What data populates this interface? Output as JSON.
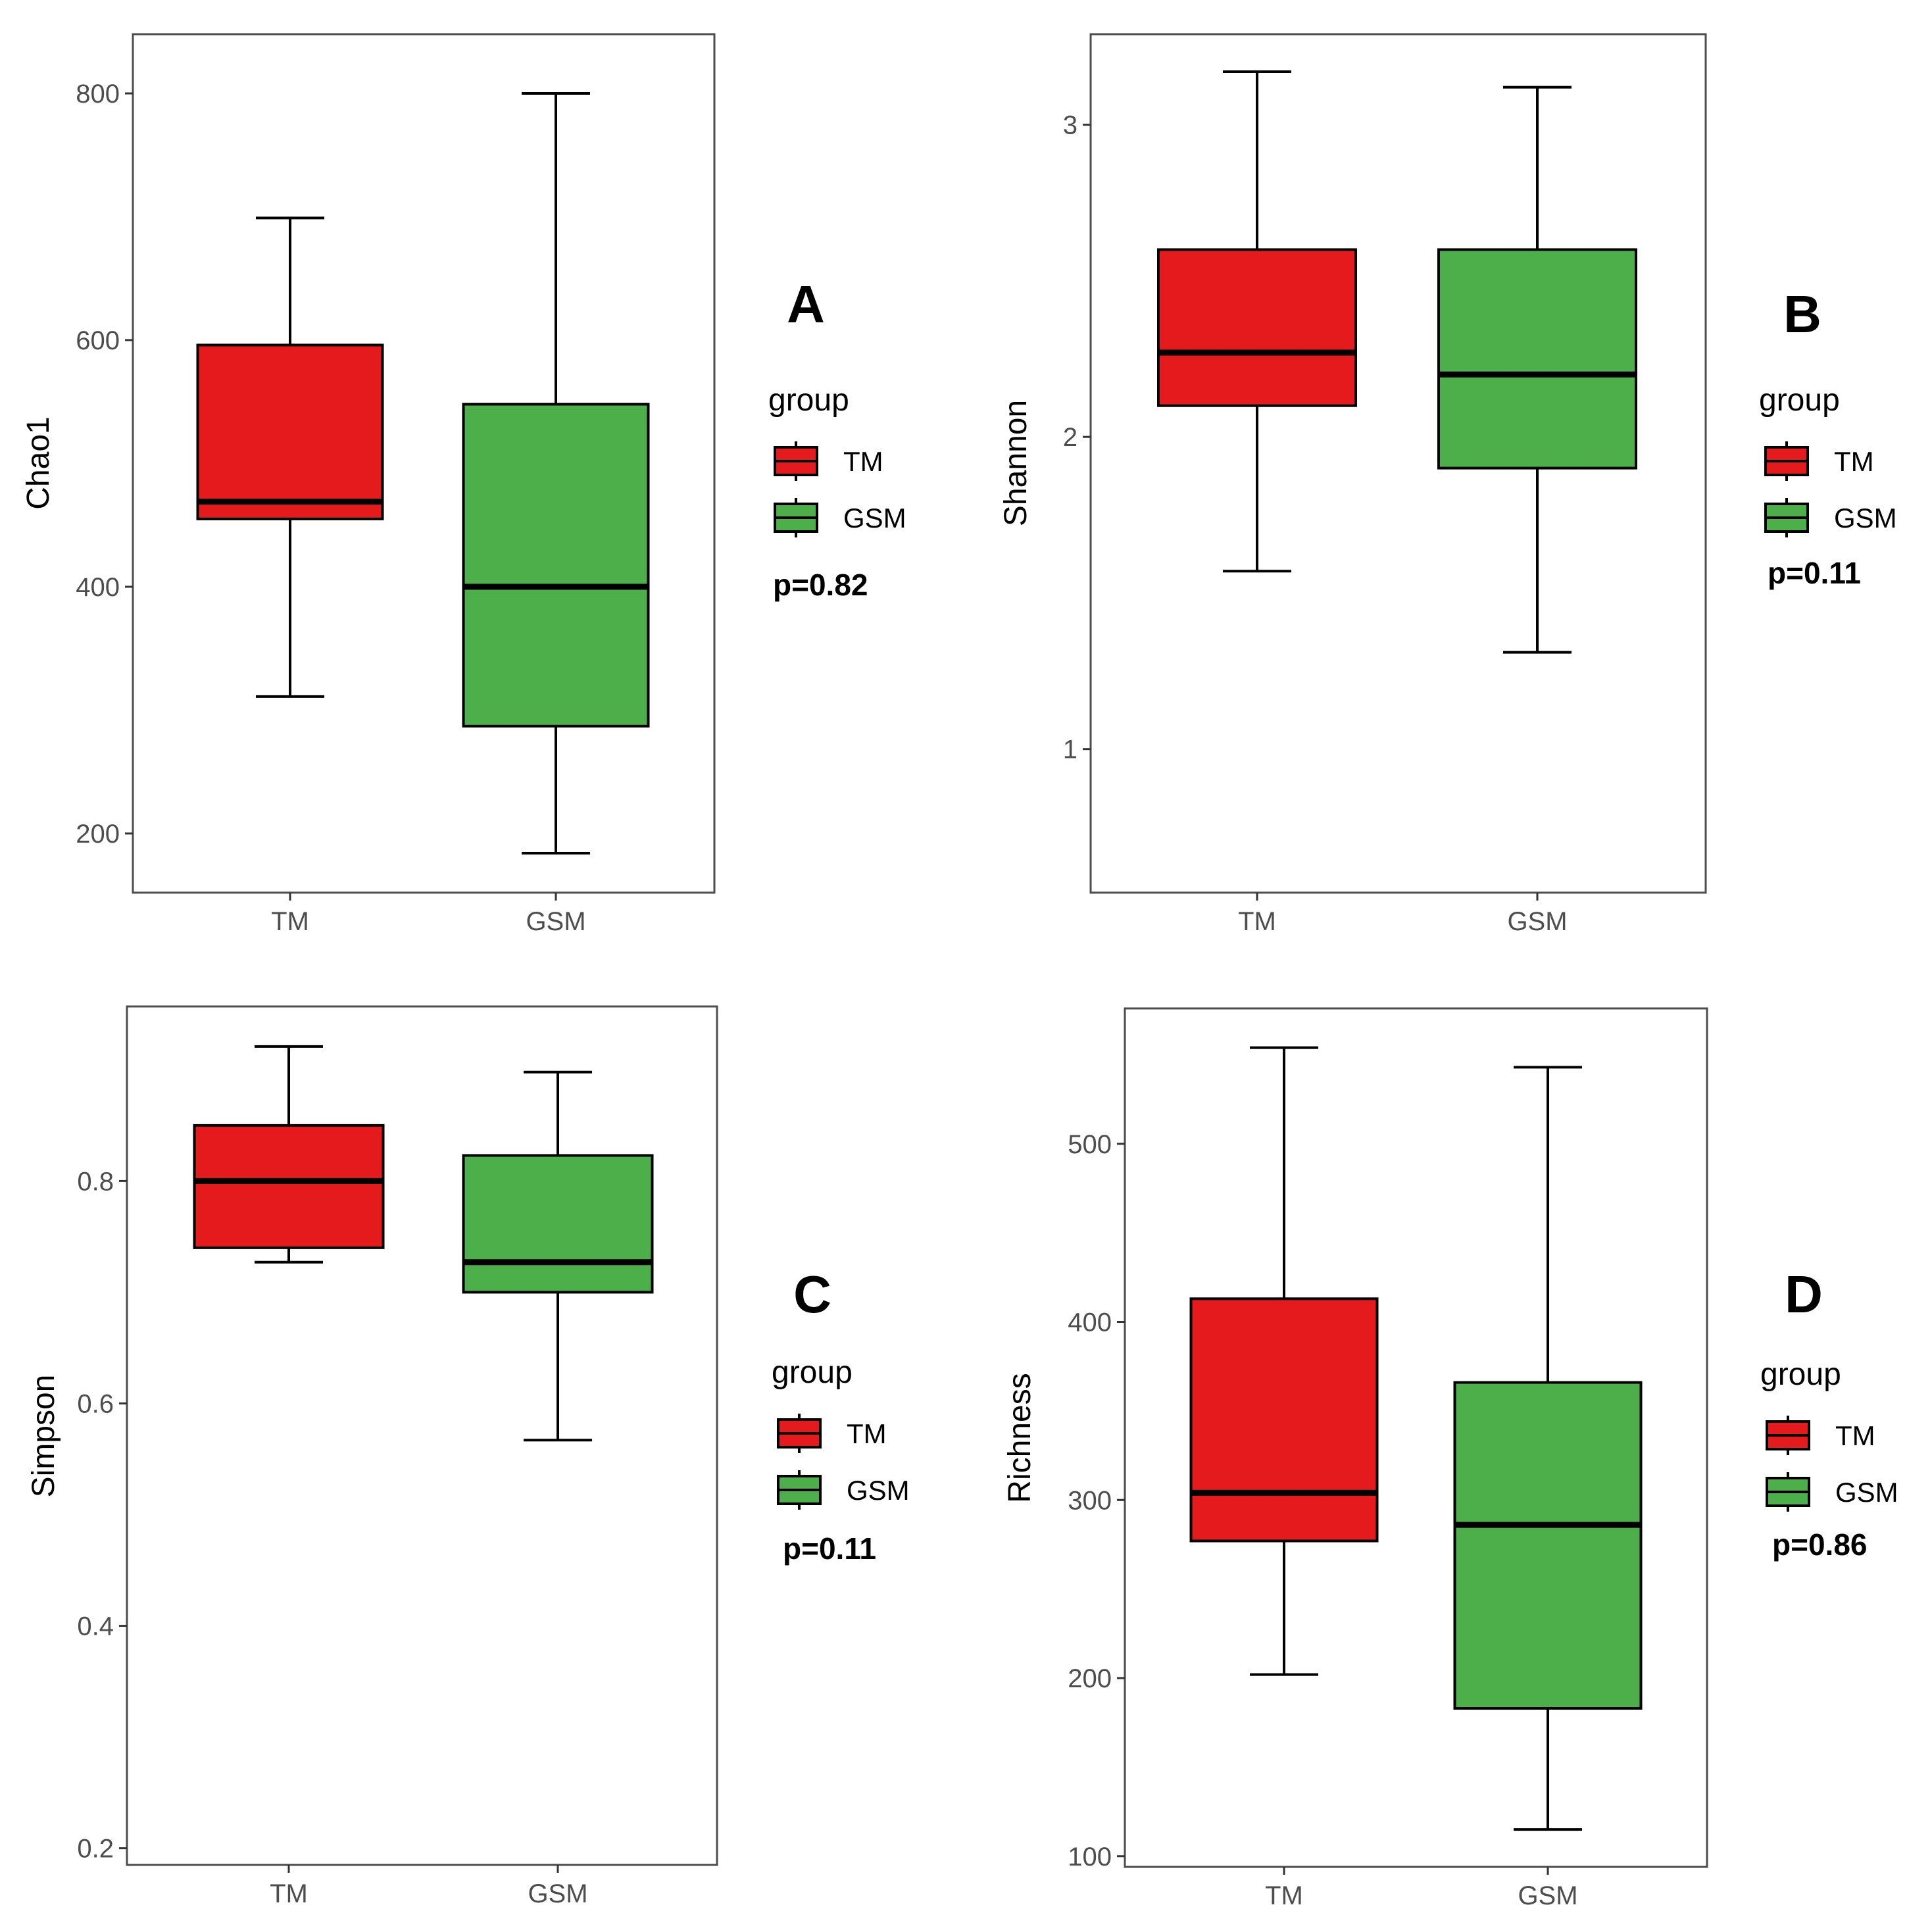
{
  "chart_data": [
    {
      "type": "boxplot",
      "panel_label": "A",
      "ylabel": "Chao1",
      "ylim": [
        152,
        848
      ],
      "yticks": [
        200,
        400,
        600,
        800
      ],
      "categories": [
        "TM",
        "GSM"
      ],
      "legend": {
        "title": "group",
        "entries": [
          "TM",
          "GSM"
        ],
        "position": "right"
      },
      "p_value_label": "p=0.82",
      "boxes": [
        {
          "group": "TM",
          "whisker_low": 311,
          "q1": 455,
          "median": 469,
          "q3": 596,
          "whisker_high": 699
        },
        {
          "group": "GSM",
          "whisker_low": 184,
          "q1": 287,
          "median": 400,
          "q3": 548,
          "whisker_high": 800
        }
      ]
    },
    {
      "type": "boxplot",
      "panel_label": "B",
      "ylabel": "Shannon",
      "ylim": [
        0.54,
        3.29
      ],
      "yticks": [
        1,
        2,
        3
      ],
      "categories": [
        "TM",
        "GSM"
      ],
      "legend": {
        "title": "group",
        "entries": [
          "TM",
          "GSM"
        ],
        "position": "right"
      },
      "p_value_label": "p=0.11",
      "boxes": [
        {
          "group": "TM",
          "whisker_low": 1.57,
          "q1": 2.1,
          "median": 2.27,
          "q3": 2.6,
          "whisker_high": 3.17
        },
        {
          "group": "GSM",
          "whisker_low": 1.31,
          "q1": 1.9,
          "median": 2.2,
          "q3": 2.6,
          "whisker_high": 3.12
        }
      ]
    },
    {
      "type": "boxplot",
      "panel_label": "C",
      "ylabel": "Simpson",
      "ylim": [
        0.185,
        0.957
      ],
      "yticks": [
        0.2,
        0.4,
        0.6,
        0.8
      ],
      "categories": [
        "TM",
        "GSM"
      ],
      "legend": {
        "title": "group",
        "entries": [
          "TM",
          "GSM"
        ],
        "position": "right"
      },
      "p_value_label": "p=0.11",
      "boxes": [
        {
          "group": "TM",
          "whisker_low": 0.727,
          "q1": 0.74,
          "median": 0.8,
          "q3": 0.85,
          "whisker_high": 0.921
        },
        {
          "group": "GSM",
          "whisker_low": 0.567,
          "q1": 0.7,
          "median": 0.727,
          "q3": 0.823,
          "whisker_high": 0.898
        }
      ]
    },
    {
      "type": "boxplot",
      "panel_label": "D",
      "ylabel": "Richness",
      "ylim": [
        94,
        576
      ],
      "yticks": [
        100,
        200,
        300,
        400,
        500
      ],
      "categories": [
        "TM",
        "GSM"
      ],
      "legend": {
        "title": "group",
        "entries": [
          "TM",
          "GSM"
        ],
        "position": "right"
      },
      "p_value_label": "p=0.86",
      "boxes": [
        {
          "group": "TM",
          "whisker_low": 202,
          "q1": 277,
          "median": 304,
          "q3": 413,
          "whisker_high": 554
        },
        {
          "group": "GSM",
          "whisker_low": 115,
          "q1": 183,
          "median": 286,
          "q3": 366,
          "whisker_high": 543
        }
      ]
    }
  ],
  "colors": {
    "TM": "#e41a1c",
    "GSM": "#4daf4a"
  }
}
